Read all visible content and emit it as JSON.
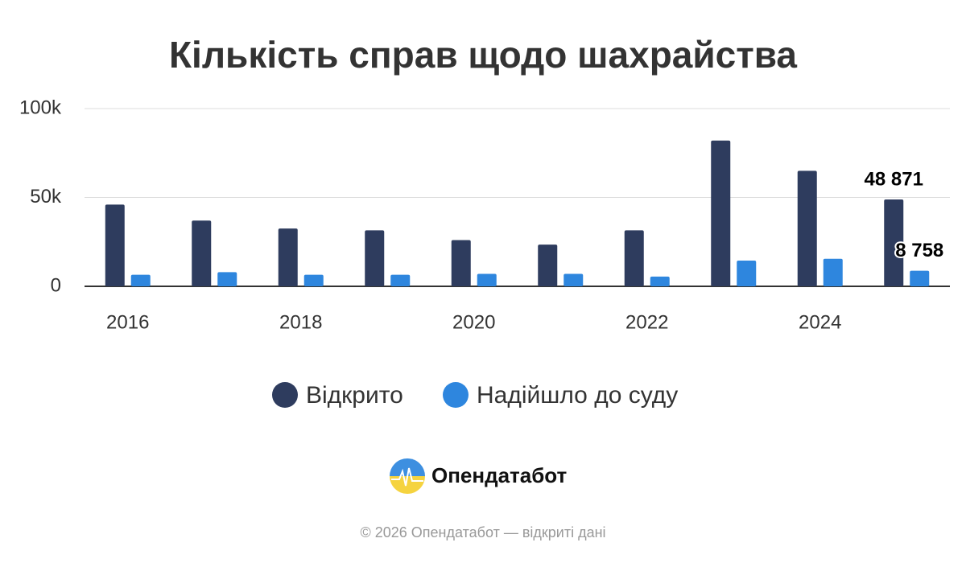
{
  "chart_data": {
    "type": "bar",
    "title": "Кількість справ щодо шахрайства",
    "categories": [
      "2016",
      null,
      "2018",
      null,
      "2020",
      null,
      "2022",
      null,
      "2024",
      null
    ],
    "series": [
      {
        "name": "Відкрито",
        "color": "#2e3c5e",
        "values": [
          46000,
          37000,
          32500,
          31500,
          26000,
          23500,
          31500,
          82000,
          65000,
          48871
        ],
        "value_labels": [
          null,
          null,
          null,
          null,
          null,
          null,
          null,
          null,
          null,
          "48 871"
        ]
      },
      {
        "name": "Надійшло до суду",
        "color": "#2e86de",
        "values": [
          6500,
          8000,
          6500,
          6500,
          7000,
          7000,
          5500,
          14500,
          15500,
          8758
        ],
        "value_labels": [
          null,
          null,
          null,
          null,
          null,
          null,
          null,
          null,
          null,
          "8 758"
        ]
      }
    ],
    "ylim": [
      0,
      100000
    ],
    "yticks": [
      0,
      {
        "value": 50000,
        "label": "50k"
      },
      {
        "value": 100000,
        "label": "100k"
      }
    ],
    "grid": true
  },
  "logo_text": "Опендатабот",
  "footer": "© 2026 Опендатабот — відкриті дані"
}
